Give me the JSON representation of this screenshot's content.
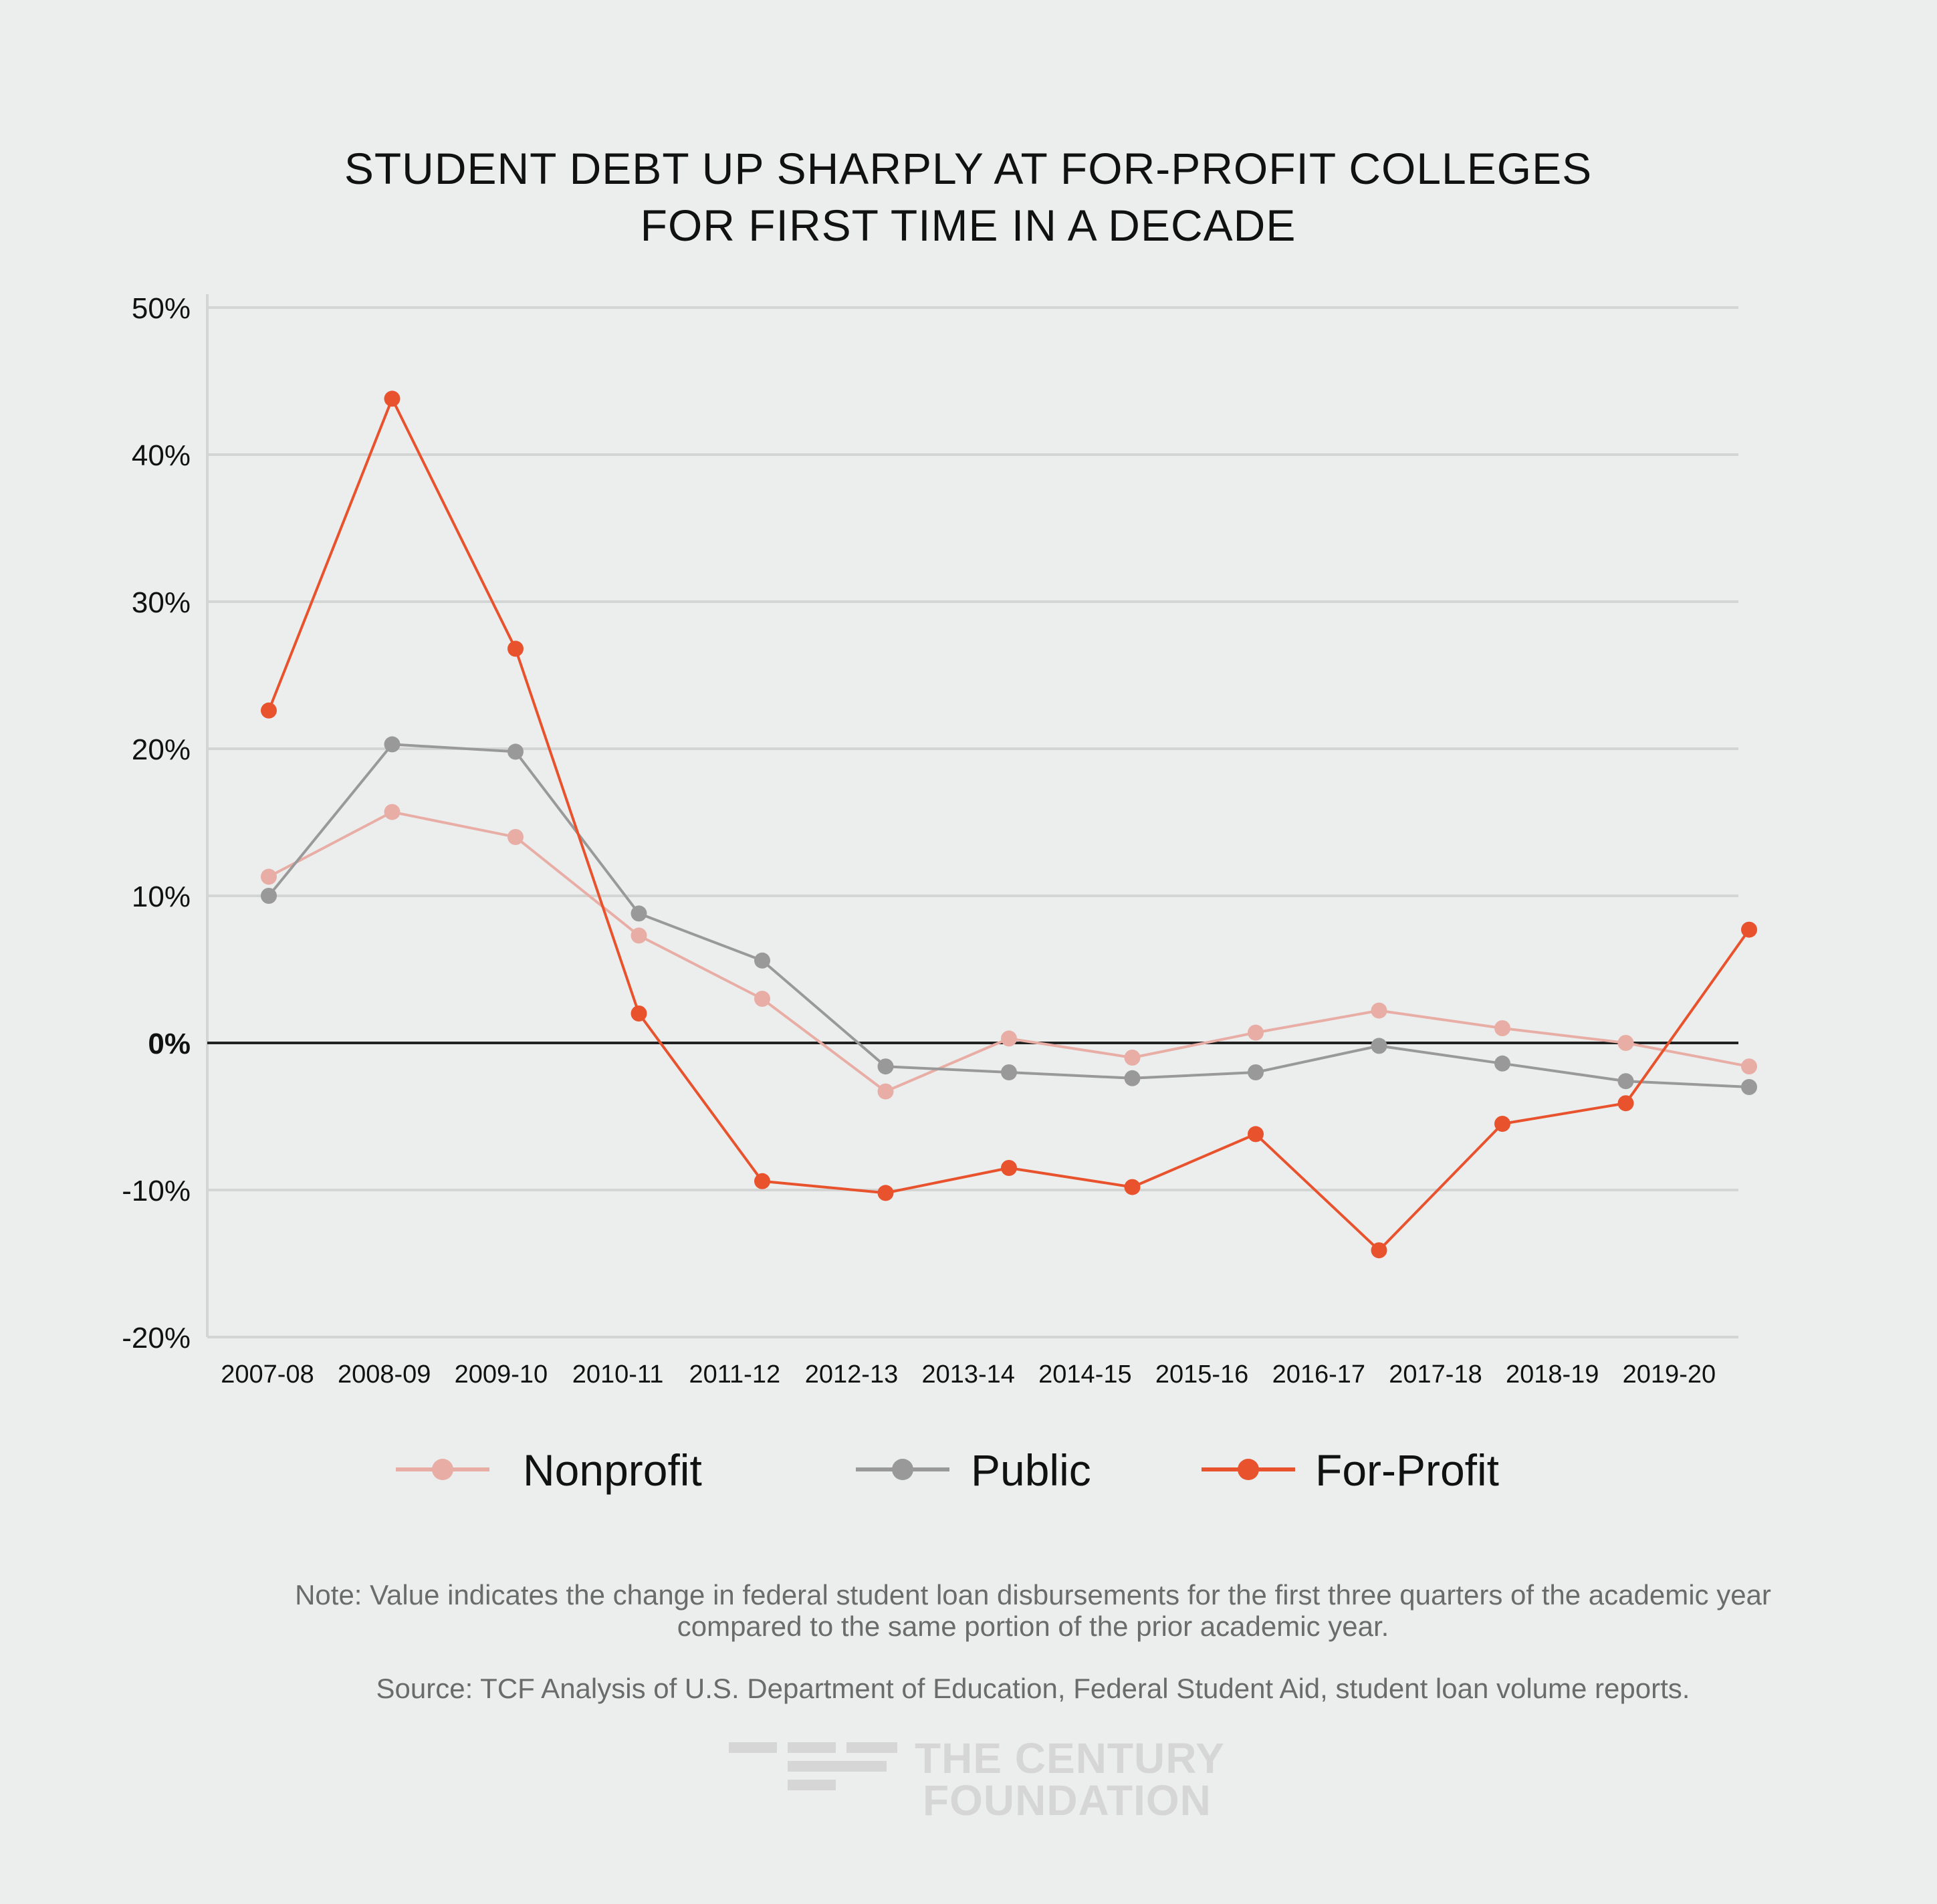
{
  "chart_data": {
    "type": "line",
    "title": [
      "STUDENT DEBT UP SHARPLY AT FOR-PROFIT COLLEGES",
      "FOR FIRST TIME IN A DECADE"
    ],
    "xlabel": "",
    "ylabel": "",
    "categories": [
      "2007-08",
      "2008-09",
      "2009-10",
      "2010-11",
      "2011-12",
      "2012-13",
      "2013-14",
      "2014-15",
      "2015-16",
      "2016-17",
      "2017-18",
      "2018-19",
      "2019-20"
    ],
    "ylim": [
      -20,
      50
    ],
    "yticks": [
      50,
      40,
      30,
      20,
      10,
      0,
      -10,
      -20
    ],
    "ytick_labels": [
      "50%",
      "40%",
      "30%",
      "20%",
      "10%",
      "0%",
      "-10%",
      "-20%"
    ],
    "grid": true,
    "legend_position": "bottom",
    "series": [
      {
        "name": "Nonprofit",
        "color": "#e8aea6",
        "values": [
          11.3,
          15.7,
          14.0,
          7.3,
          3.0,
          -3.3,
          0.3,
          -1.0,
          0.7,
          2.2,
          1.0,
          0.0,
          -1.6
        ]
      },
      {
        "name": "Public",
        "color": "#999999",
        "values": [
          10.0,
          20.3,
          19.8,
          8.8,
          5.6,
          -1.6,
          -2.0,
          -2.4,
          -2.0,
          -0.2,
          -1.4,
          -2.6,
          -3.0
        ]
      },
      {
        "name": "For-Profit",
        "color": "#e8532e",
        "values": [
          22.6,
          43.8,
          26.8,
          2.0,
          -9.4,
          -10.2,
          -8.5,
          -9.8,
          -6.2,
          -14.1,
          -5.5,
          -4.1,
          7.7
        ]
      }
    ],
    "annotations": {
      "note": [
        "Note: Value indicates the change in federal student loan disbursements for the first three quarters of the academic year",
        "compared to the same portion of the prior academic year."
      ],
      "source": "Source: TCF Analysis of U.S. Department of Education, Federal Student Aid, student loan volume reports."
    }
  },
  "logo": {
    "line1": "THE CENTURY",
    "line2": "FOUNDATION"
  },
  "colors": {
    "background": "#eceeee",
    "grid": "#d3d5d5",
    "zero_line": "#222222"
  }
}
